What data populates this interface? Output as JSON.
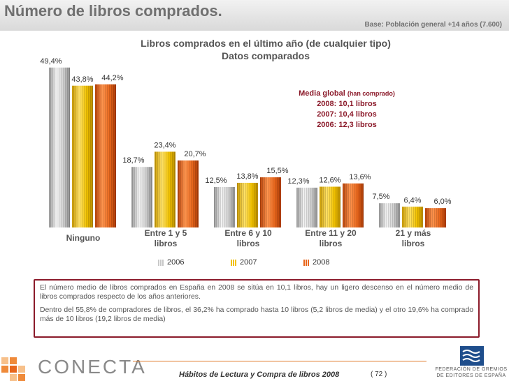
{
  "header": {
    "title": "Número de libros comprados.",
    "base_note": "Base: Población general +14 años (7.600)"
  },
  "chart_data": {
    "type": "bar",
    "title": "Libros comprados en el último año (de cualquier tipo)",
    "subtitle": "Datos comparados",
    "categories": [
      "Ninguno",
      "Entre 1 y 5 libros",
      "Entre 6 y 10 libros",
      "Entre 11 y 20 libros",
      "21 y más libros"
    ],
    "category_lines": [
      [
        "Ninguno"
      ],
      [
        "Entre 1 y 5",
        "libros"
      ],
      [
        "Entre 6 y 10",
        "libros"
      ],
      [
        "Entre 11 y 20",
        "libros"
      ],
      [
        "21 y más",
        "libros"
      ]
    ],
    "series": [
      {
        "name": "2006",
        "values": [
          49.4,
          18.7,
          12.5,
          12.3,
          7.5
        ],
        "labels": [
          "49,4%",
          "18,7%",
          "12,5%",
          "12,3%",
          "7,5%"
        ],
        "color": "#c8c8c8"
      },
      {
        "name": "2007",
        "values": [
          43.8,
          23.4,
          13.8,
          12.6,
          6.4
        ],
        "labels": [
          "43,8%",
          "23,4%",
          "13,8%",
          "12,6%",
          "6,4%"
        ],
        "color": "#f2c200"
      },
      {
        "name": "2008",
        "values": [
          44.2,
          20.7,
          15.5,
          13.6,
          6.0
        ],
        "labels": [
          "44,2%",
          "20,7%",
          "15,5%",
          "13,6%",
          "6,0%"
        ],
        "color": "#e8661c"
      }
    ],
    "ylim": [
      0,
      50
    ],
    "legend_position": "bottom",
    "grid": false
  },
  "media_global": {
    "heading": "Media global",
    "heading_sub": "(han comprado)",
    "lines": [
      "2008: 10,1 libros",
      "2007: 10,4 libros",
      "2006: 12,3 libros"
    ]
  },
  "notes": {
    "p1": "El número medio de libros comprados en España en 2008 se sitúa en 10,1 libros, hay un ligero descenso en el número medio de libros comprados respecto de los  años anteriores.",
    "p2": "Dentro del 55,8% de compradores de libros, el 36,2% ha comprado hasta 10 libros (5,2 libros de media) y el otro 19,6% ha comprado más de 10 libros (19,2 libros de media)"
  },
  "footer": {
    "logo": "CONECTA",
    "publication": "Hábitos de Lectura y Compra de libros 2008",
    "page": "( 72 )",
    "federation_lines": [
      "FEDERACIÓN DE GREMIOS",
      "DE EDITORES DE ESPAÑA"
    ]
  }
}
